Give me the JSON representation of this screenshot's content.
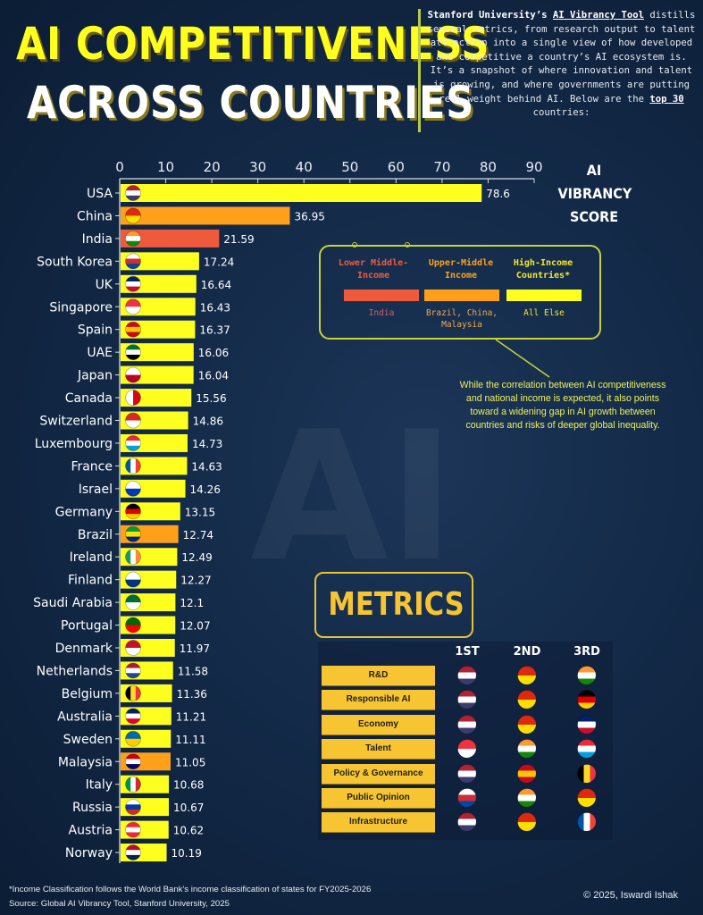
{
  "title": {
    "line1": "AI COMPETITIVENESS",
    "line2": "ACROSS COUNTRIES"
  },
  "intro": {
    "pre": "Stanford University’s ",
    "link": "AI Vibrancy Tool",
    "body": " distills several metrics, from research output to talent attraction into a single view of how developed and competitive a country’s AI ecosystem is. It’s a snapshot of where innovation and talent is growing, and where governments are putting real weight behind AI. Below are the ",
    "emph": "top 30",
    "post": " countries:"
  },
  "chart_data": {
    "type": "bar",
    "orientation": "horizontal",
    "xlabel": "AI VIBRANCY SCORE",
    "xlim": [
      0,
      90
    ],
    "xticks": [
      0,
      10,
      20,
      30,
      40,
      50,
      60,
      70,
      80,
      90
    ],
    "grid": false,
    "colors": {
      "lower_middle": "#ef5a3c",
      "upper_middle": "#ffa01a",
      "high": "#ffff1f"
    },
    "categories": [
      "USA",
      "China",
      "India",
      "South Korea",
      "UK",
      "Singapore",
      "Spain",
      "UAE",
      "Japan",
      "Canada",
      "Switzerland",
      "Luxembourg",
      "France",
      "Israel",
      "Germany",
      "Brazil",
      "Ireland",
      "Finland",
      "Saudi Arabia",
      "Portugal",
      "Denmark",
      "Netherlands",
      "Belgium",
      "Australia",
      "Sweden",
      "Malaysia",
      "Italy",
      "Russia",
      "Austria",
      "Norway"
    ],
    "values": [
      78.6,
      36.95,
      21.59,
      17.24,
      16.64,
      16.43,
      16.37,
      16.06,
      16.04,
      15.56,
      14.86,
      14.73,
      14.63,
      14.26,
      13.15,
      12.74,
      12.49,
      12.27,
      12.1,
      12.07,
      11.97,
      11.58,
      11.36,
      11.21,
      11.11,
      11.05,
      10.68,
      10.67,
      10.62,
      10.19
    ],
    "value_labels": [
      "78.6",
      "36.95",
      "21.59",
      "17.24",
      "16.64",
      "16.43",
      "16.37",
      "16.06",
      "16.04",
      "15.56",
      "14.86",
      "14.73",
      "14.63",
      "14.26",
      "13.15",
      "12.74",
      "12.49",
      "12.27",
      "12.1",
      "12.07",
      "11.97",
      "11.58",
      "11.36",
      "11.21",
      "11.11",
      "11.05",
      "10.68",
      "10.67",
      "10.62",
      "10.19"
    ],
    "income_group": [
      "high",
      "upper_middle",
      "lower_middle",
      "high",
      "high",
      "high",
      "high",
      "high",
      "high",
      "high",
      "high",
      "high",
      "high",
      "high",
      "high",
      "upper_middle",
      "high",
      "high",
      "high",
      "high",
      "high",
      "high",
      "high",
      "high",
      "high",
      "upper_middle",
      "high",
      "high",
      "high",
      "high"
    ],
    "flags": [
      "us",
      "cn",
      "in",
      "kr",
      "gb",
      "sg",
      "es",
      "ae",
      "jp",
      "ca",
      "ch",
      "lu",
      "fr",
      "il",
      "de",
      "br",
      "ie",
      "fi",
      "sa",
      "pt",
      "dk",
      "nl",
      "be",
      "au",
      "se",
      "my",
      "it",
      "ru",
      "at",
      "no"
    ]
  },
  "legend": {
    "groups": [
      {
        "label": "Lower Middle-Income",
        "countries": "India",
        "color": "#ef5a3c"
      },
      {
        "label": "Upper-Middle Income",
        "countries": "Brazil, China, Malaysia",
        "color": "#ffa01a"
      },
      {
        "label": "High-Income Countries*",
        "countries": "All Else",
        "color": "#ffff1f"
      }
    ]
  },
  "note": "While the correlation between AI competitiveness and national income is expected, it also points toward a widening gap in AI growth between countries and risks of deeper global inequality.",
  "metrics": {
    "title": "METRICS",
    "columns": [
      "1ST",
      "2ND",
      "3RD"
    ],
    "rows": [
      {
        "label": "R&D",
        "ranks": [
          "us",
          "cn",
          "in"
        ]
      },
      {
        "label": "Responsible AI",
        "ranks": [
          "us",
          "cn",
          "de"
        ]
      },
      {
        "label": "Economy",
        "ranks": [
          "us",
          "cn",
          "gb"
        ]
      },
      {
        "label": "Talent",
        "ranks": [
          "sg",
          "in",
          "lu"
        ]
      },
      {
        "label": "Policy & Governance",
        "ranks": [
          "us",
          "es",
          "be"
        ]
      },
      {
        "label": "Public Opinion",
        "ranks": [
          "kr",
          "in",
          "cn"
        ]
      },
      {
        "label": "Infrastructure",
        "ranks": [
          "us",
          "cn",
          "fr"
        ]
      }
    ]
  },
  "footer": {
    "income_note": "*Income Classification follows the World Bank's income classification of states for FY2025-2026",
    "source": "Source: Global AI Vibrancy Tool, Stanford University, 2025",
    "copyright": "© 2025, Iswardi Ishak"
  }
}
